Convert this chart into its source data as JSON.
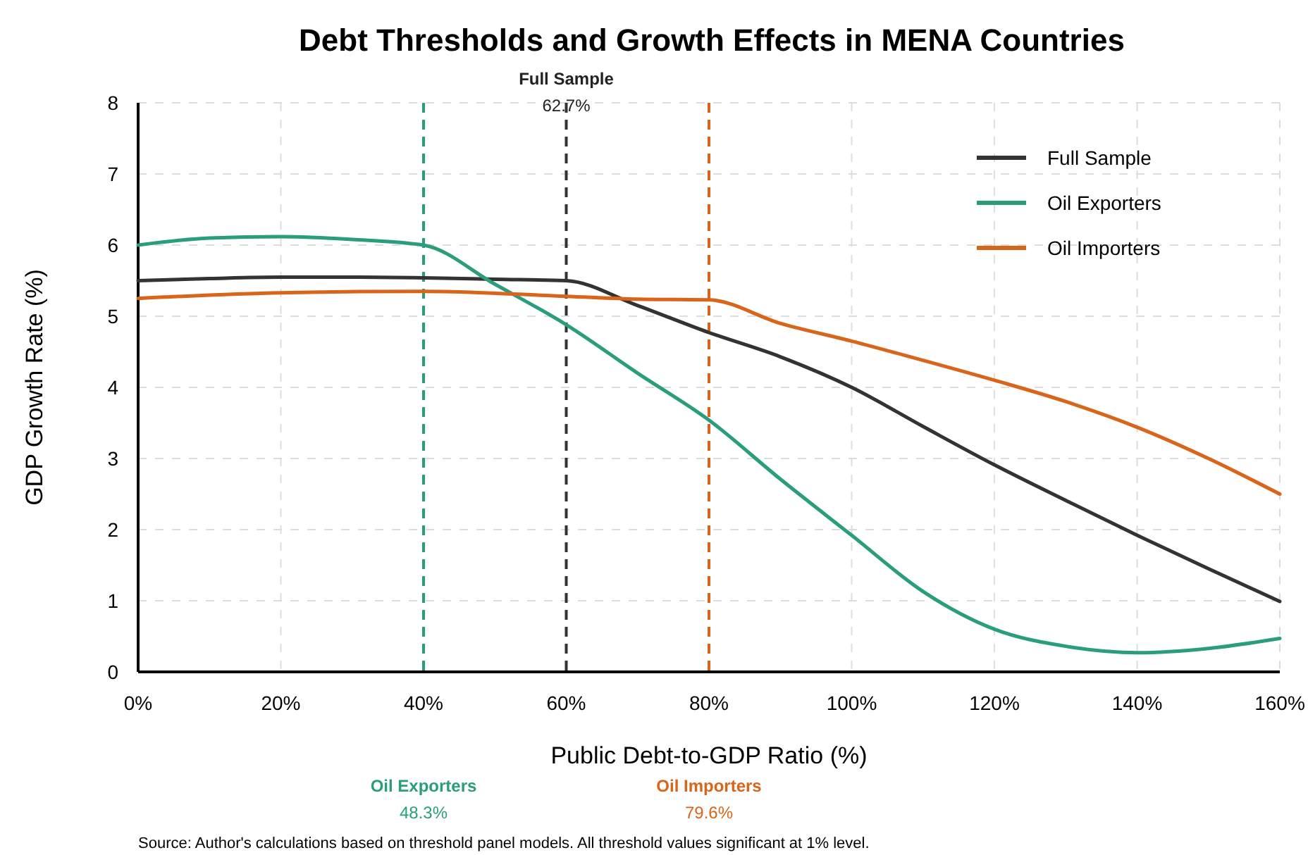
{
  "chart_data": {
    "type": "line",
    "title": "Debt Thresholds and Growth Effects in MENA Countries",
    "xlabel": "Public Debt-to-GDP Ratio (%)",
    "ylabel": "GDP Growth Rate (%)",
    "xlim": [
      0,
      160
    ],
    "xticks": [
      {
        "value": 0,
        "label": "0%"
      },
      {
        "value": 20,
        "label": "20%"
      },
      {
        "value": 40,
        "label": "40%"
      },
      {
        "value": 60,
        "label": "60%"
      },
      {
        "value": 80,
        "label": "80%"
      },
      {
        "value": 100,
        "label": "100%"
      },
      {
        "value": 120,
        "label": "120%"
      },
      {
        "value": 140,
        "label": "140%"
      },
      {
        "value": 160,
        "label": "160%"
      }
    ],
    "ylim": [
      0,
      8
    ],
    "yticks": [
      0,
      1,
      2,
      3,
      4,
      5,
      6,
      7,
      8
    ],
    "grid": true,
    "legend": "top right",
    "marker": "none",
    "line_style": "solid",
    "series": [
      {
        "name": "Full Sample",
        "color": "#333333",
        "x": [
          0,
          10,
          20,
          30,
          40,
          50,
          60,
          70,
          80,
          90,
          100,
          110,
          120,
          130,
          140,
          150,
          160
        ],
        "values": [
          5.5,
          5.53,
          5.55,
          5.55,
          5.54,
          5.52,
          5.5,
          5.15,
          4.77,
          4.43,
          4.0,
          3.45,
          2.91,
          2.41,
          1.92,
          1.45,
          0.99
        ]
      },
      {
        "name": "Oil Exporters",
        "color": "#2a9d7c",
        "x": [
          0,
          10,
          20,
          30,
          40,
          50,
          60,
          70,
          80,
          90,
          100,
          110,
          120,
          130,
          140,
          150,
          160
        ],
        "values": [
          6.0,
          6.1,
          6.12,
          6.08,
          6.0,
          5.45,
          4.88,
          4.2,
          3.54,
          2.71,
          1.92,
          1.13,
          0.6,
          0.36,
          0.27,
          0.33,
          0.47
        ]
      },
      {
        "name": "Oil Importers",
        "color": "#d9651b",
        "x": [
          0,
          20,
          40,
          60,
          70,
          80,
          90,
          100,
          110,
          120,
          130,
          140,
          150,
          160
        ],
        "values": [
          5.25,
          5.33,
          5.35,
          5.28,
          5.24,
          5.23,
          4.9,
          4.65,
          4.38,
          4.1,
          3.8,
          3.44,
          3.0,
          2.5
        ]
      }
    ],
    "ref_lines": [
      {
        "axis": "x",
        "value": 60,
        "label": "Full Sample\n62.7%",
        "color": "#333333",
        "line_style": "dashed"
      },
      {
        "axis": "x",
        "value": 40,
        "label": "Oil Exporters\n48.3%",
        "color": "#2a9d7c",
        "line_style": "dashed"
      },
      {
        "axis": "x",
        "value": 80,
        "label": "Oil Importers\n79.6%",
        "color": "#d9651b",
        "line_style": "dashed"
      }
    ],
    "annotations": [
      "Source: Author's calculations based on threshold panel models. All threshold values significant at 1% level."
    ]
  }
}
